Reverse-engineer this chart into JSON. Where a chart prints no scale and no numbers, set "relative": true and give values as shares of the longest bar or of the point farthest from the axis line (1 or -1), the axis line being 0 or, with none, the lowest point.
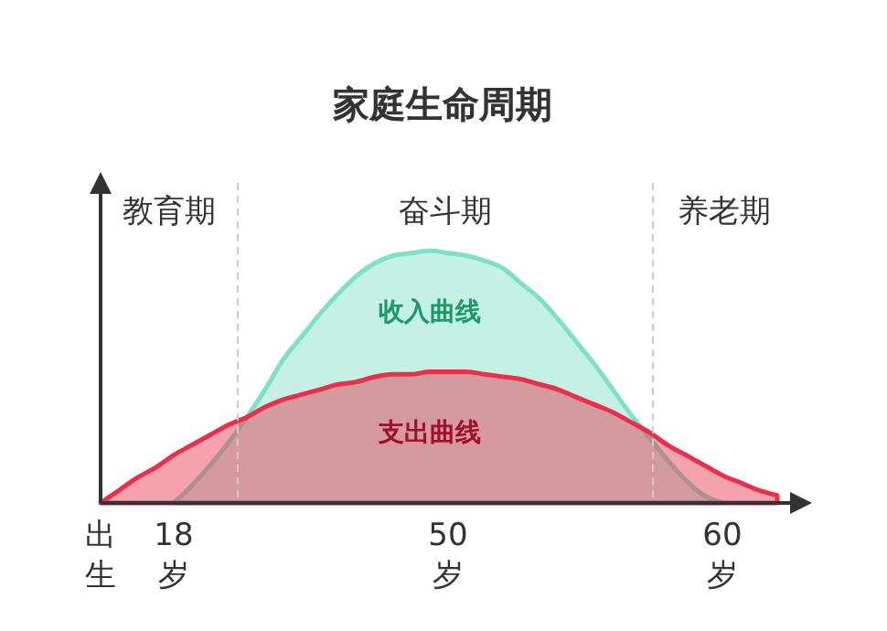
{
  "chart_data": {
    "type": "area",
    "title": "家庭生命周期",
    "relative": true,
    "categories": [
      "出生",
      null,
      null,
      null,
      "18岁",
      null,
      null,
      null,
      null,
      null,
      null,
      null,
      null,
      null,
      null,
      null,
      null,
      null,
      null,
      "50岁",
      null,
      null,
      null,
      null,
      null,
      null,
      null,
      null,
      null,
      null,
      null,
      null,
      null,
      null,
      "60岁",
      null,
      null,
      null,
      null
    ],
    "annotations": [
      "教育期",
      "奋斗期",
      "养老期"
    ],
    "series": [
      {
        "name": "收入曲线",
        "color": "#7ee0c4",
        "values": [
          null,
          null,
          null,
          null,
          0,
          0.07,
          0.15,
          0.24,
          0.34,
          0.45,
          0.57,
          0.66,
          0.75,
          0.83,
          0.9,
          0.95,
          0.98,
          0.99,
          1,
          0.99,
          0.98,
          0.96,
          0.93,
          0.87,
          0.81,
          0.73,
          0.64,
          0.55,
          0.45,
          0.35,
          0.26,
          0.17,
          0.09,
          0.03,
          0,
          null,
          null,
          null,
          null
        ]
      },
      {
        "name": "支出曲线",
        "color": "#e8304a",
        "values": [
          0,
          0.05,
          0.1,
          0.14,
          0.19,
          0.23,
          0.27,
          0.31,
          0.34,
          0.38,
          0.41,
          0.43,
          0.45,
          0.47,
          0.48,
          0.5,
          0.51,
          0.51,
          0.52,
          0.52,
          0.52,
          0.51,
          0.5,
          0.49,
          0.47,
          0.45,
          0.42,
          0.39,
          0.36,
          0.32,
          0.28,
          0.23,
          0.19,
          0.15,
          0.11,
          0.08,
          0.05,
          0.03,
          null
        ]
      }
    ]
  }
}
